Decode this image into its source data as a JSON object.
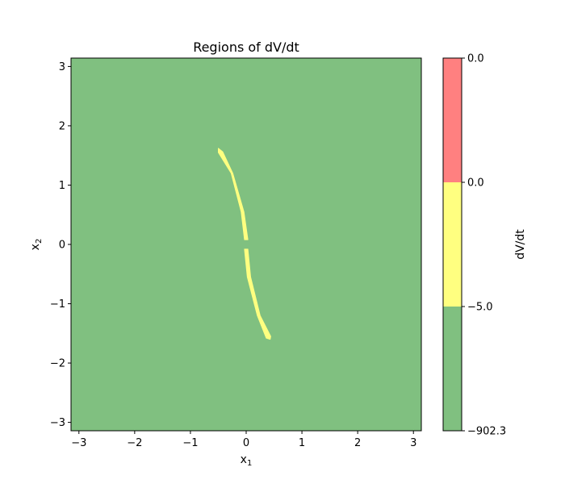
{
  "chart_data": {
    "type": "heatmap",
    "title": "Regions of dV/dt",
    "xlabel": {
      "base": "x",
      "sub": "1"
    },
    "ylabel": {
      "base": "x",
      "sub": "2"
    },
    "xlim": [
      -3.14159,
      3.14159
    ],
    "ylim": [
      -3.14159,
      3.14159
    ],
    "xticks": [
      -3,
      -2,
      -1,
      0,
      1,
      2,
      3
    ],
    "yticks": [
      -3,
      -2,
      -1,
      0,
      1,
      2,
      3
    ],
    "xtick_labels": [
      "−3",
      "−2",
      "−1",
      "0",
      "1",
      "2",
      "3"
    ],
    "ytick_labels": [
      "−3",
      "−2",
      "−1",
      "0",
      "1",
      "2",
      "3"
    ],
    "grid": false,
    "background_region_color": "#80c080",
    "regions": [
      {
        "color": "#ffff80",
        "polygon": [
          [
            -0.5,
            1.62
          ],
          [
            -0.42,
            1.56
          ],
          [
            -0.24,
            1.2
          ],
          [
            -0.04,
            0.55
          ],
          [
            0.03,
            0.08
          ],
          [
            -0.03,
            0.08
          ],
          [
            -0.09,
            0.55
          ],
          [
            -0.27,
            1.2
          ],
          [
            -0.5,
            1.55
          ]
        ]
      },
      {
        "color": "#ffff80",
        "polygon": [
          [
            0.43,
            -1.6
          ],
          [
            0.36,
            -1.58
          ],
          [
            0.2,
            -1.2
          ],
          [
            0.02,
            -0.55
          ],
          [
            -0.03,
            -0.08
          ],
          [
            0.03,
            -0.08
          ],
          [
            0.08,
            -0.55
          ],
          [
            0.25,
            -1.2
          ],
          [
            0.44,
            -1.55
          ]
        ]
      }
    ],
    "colorbar": {
      "label": "dV/dt",
      "boundaries": [
        -902.3,
        -5.0,
        0.0,
        0.0
      ],
      "tick_labels": [
        "−902.3",
        "−5.0",
        "0.0",
        "0.0"
      ],
      "colors": [
        "#80c080",
        "#ffff80",
        "#ff8080"
      ]
    }
  }
}
